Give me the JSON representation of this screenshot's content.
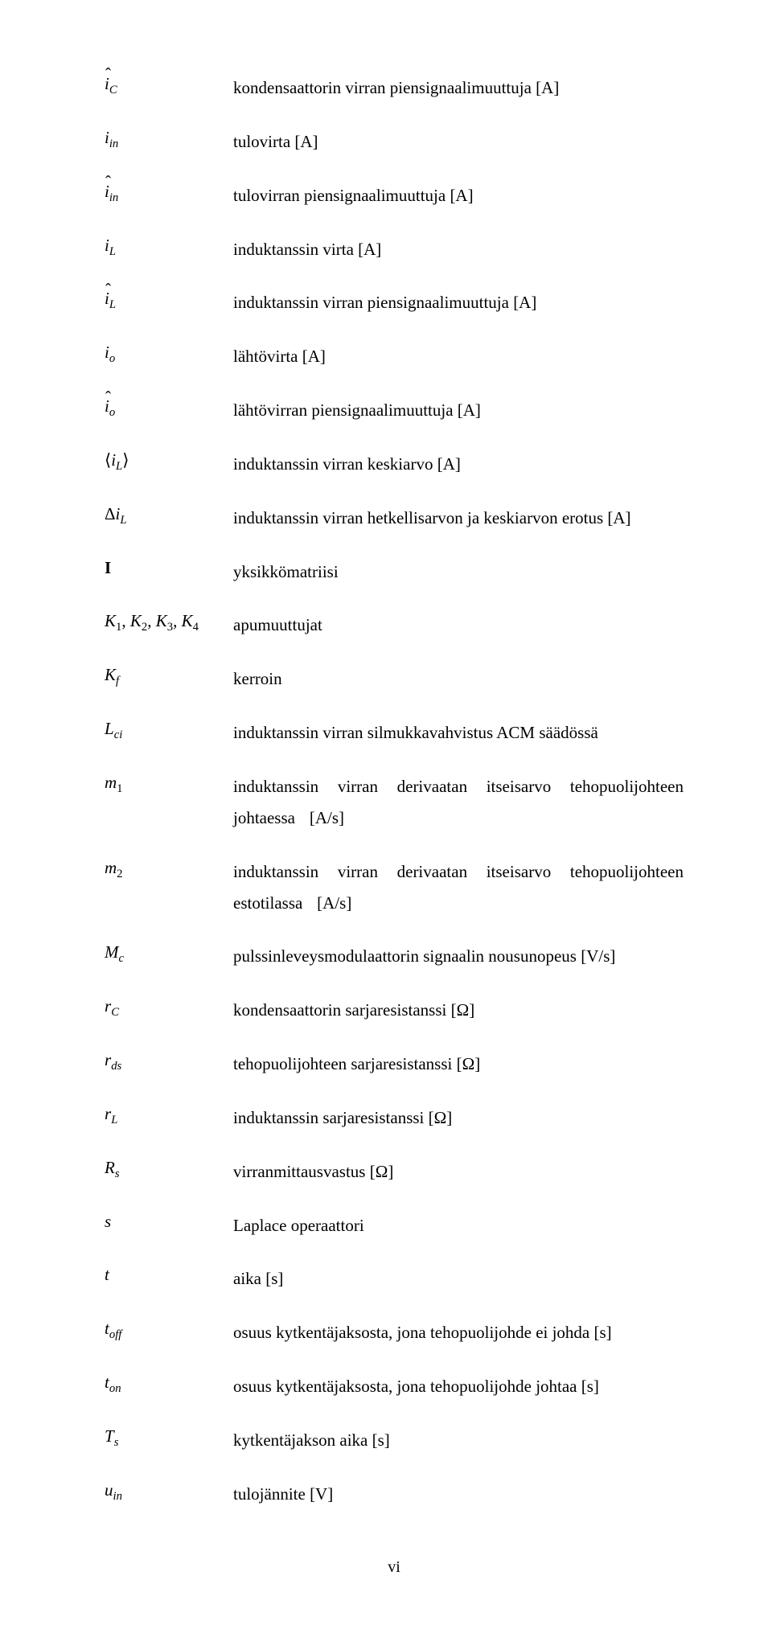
{
  "rows": [
    {
      "sym": "<span class='hat'>i</span><sub>C</sub>",
      "desc": "kondensaattorin virran piensignaalimuuttuja [A]"
    },
    {
      "sym": "i<sub>in</sub>",
      "desc": "tulovirta [A]"
    },
    {
      "sym": "<span class='hat'>i</span><sub>in</sub>",
      "desc": "tulovirran piensignaalimuuttuja [A]"
    },
    {
      "sym": "i<sub>L</sub>",
      "desc": "induktanssin virta [A]"
    },
    {
      "sym": "<span class='hat'>i</span><sub>L</sub>",
      "desc": "induktanssin virran piensignaalimuuttuja [A]"
    },
    {
      "sym": "i<sub>o</sub>",
      "desc": "lähtövirta [A]"
    },
    {
      "sym": "<span class='hat'>i</span><sub>o</sub>",
      "desc": "lähtövirran piensignaalimuuttuja [A]"
    },
    {
      "sym": "<span class='up'>&#x27E8;</span>i<sub>L</sub><span class='up'>&#x27E9;</span>",
      "desc": "induktanssin virran keskiarvo [A]"
    },
    {
      "sym": "<span class='up'>&#x0394;</span>i<sub>L</sub>",
      "desc": "induktanssin virran hetkellisarvon ja keskiarvon erotus [A]"
    },
    {
      "sym": "<span class='up' style='font-weight:bold'>I</span>",
      "desc": "yksikkömatriisi"
    },
    {
      "sym": "K<sub><span class='up'>1</span></sub><span class='up'>,</span> K<sub><span class='up'>2</span></sub><span class='up'>,</span> K<sub><span class='up'>3</span></sub><span class='up'>,</span> K<sub><span class='up'>4</span></sub>",
      "desc": "apumuuttujat"
    },
    {
      "sym": "K<sub>f</sub>",
      "desc": "kerroin"
    },
    {
      "sym": "L<sub>ci</sub>",
      "desc": "induktanssin virran silmukkavahvistus ACM säädössä"
    },
    {
      "sym": "m<sub><span class='up'>1</span></sub>",
      "desc": "induktanssin virran derivaatan itseisarvo tehopuolijohteen johtaessa [A/s]",
      "justify": true
    },
    {
      "sym": "m<sub><span class='up'>2</span></sub>",
      "desc": "induktanssin virran derivaatan itseisarvo tehopuolijohteen estotilassa [A/s]",
      "justify": true
    },
    {
      "sym": "M<sub>c</sub>",
      "desc": "pulssinleveysmodulaattorin signaalin nousunopeus [V/s]"
    },
    {
      "sym": "r<sub>C</sub>",
      "desc": "kondensaattorin sarjaresistanssi [&#x03A9;]"
    },
    {
      "sym": "r<sub>ds</sub>",
      "desc": "tehopuolijohteen sarjaresistanssi [&#x03A9;]"
    },
    {
      "sym": "r<sub>L</sub>",
      "desc": "induktanssin sarjaresistanssi [&#x03A9;]"
    },
    {
      "sym": "R<sub>s</sub>",
      "desc": "virranmittausvastus [&#x03A9;]"
    },
    {
      "sym": "s",
      "desc": "Laplace operaattori"
    },
    {
      "sym": "t",
      "desc": "aika [s]"
    },
    {
      "sym": "t<sub>off</sub>",
      "desc": "osuus kytkentäjaksosta, jona tehopuolijohde ei johda [s]"
    },
    {
      "sym": "t<sub>on</sub>",
      "desc": "osuus kytkentäjaksosta, jona tehopuolijohde johtaa [s]"
    },
    {
      "sym": "T<sub>s</sub>",
      "desc": "kytkentäjakson aika [s]"
    },
    {
      "sym": "u<sub>in</sub>",
      "desc": "tulojännite [V]"
    }
  ],
  "pagenum": "vi"
}
